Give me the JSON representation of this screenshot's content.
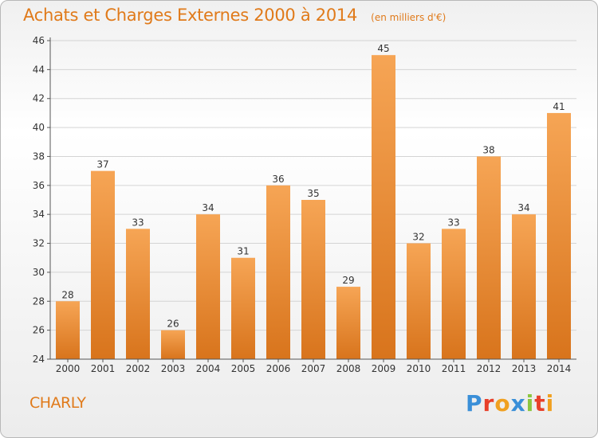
{
  "colors": {
    "accent": "#e07a1a",
    "bar_top": "#f6a555",
    "bar_bottom": "#d8741c",
    "grid": "#d4d4d4"
  },
  "place": "CHARLY",
  "logo": {
    "text": "Proxiti",
    "letter_colors": [
      "#3a8fd8",
      "#e8402a",
      "#f0a020",
      "#3a8fd8",
      "#8cc63f",
      "#e8402a",
      "#f0a020"
    ]
  },
  "chart_data": {
    "type": "bar",
    "title": "Achats et Charges Externes 2000 à 2014",
    "subtitle": "(en milliers d'€)",
    "xlabel": "",
    "ylabel": "",
    "categories": [
      "2000",
      "2001",
      "2002",
      "2003",
      "2004",
      "2005",
      "2006",
      "2007",
      "2008",
      "2009",
      "2010",
      "2011",
      "2012",
      "2013",
      "2014"
    ],
    "values": [
      28,
      37,
      33,
      26,
      34,
      31,
      36,
      35,
      29,
      45,
      32,
      33,
      38,
      34,
      41
    ],
    "ylim": [
      24,
      46
    ],
    "yticks": [
      24,
      26,
      28,
      30,
      32,
      34,
      36,
      38,
      40,
      42,
      44,
      46
    ],
    "grid": true,
    "data_labels": true
  }
}
